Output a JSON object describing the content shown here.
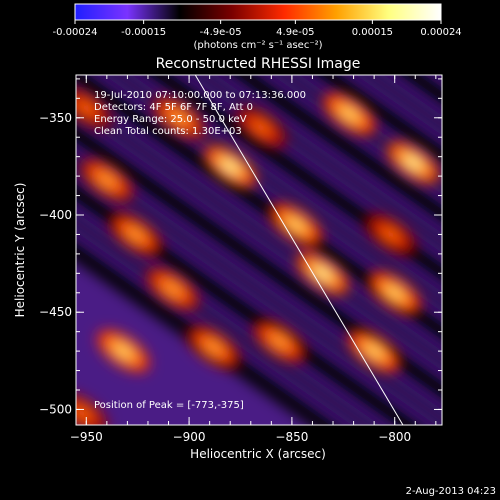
{
  "colorbar": {
    "ticks": [
      {
        "label": "-0.00024",
        "value": -0.00024
      },
      {
        "label": "-0.00015",
        "value": -0.00015
      },
      {
        "label": "-4.9e-05",
        "value": -4.9e-05
      },
      {
        "label": "4.9e-05",
        "value": 4.9e-05
      },
      {
        "label": "0.00015",
        "value": 0.00015
      },
      {
        "label": "0.00024",
        "value": 0.00024
      }
    ],
    "min": -0.00024,
    "max": 0.00024,
    "units_label": "(photons cm⁻² s⁻¹ asec⁻²)",
    "colors": [
      "#1f1fff",
      "#7a33ff",
      "#000000",
      "#7a0000",
      "#ff2a00",
      "#ffa000",
      "#ffff80",
      "#ffffff"
    ]
  },
  "chart_data": {
    "type": "heatmap",
    "title": "Reconstructed RHESSI Image",
    "xlabel": "Heliocentric X (arcsec)",
    "ylabel": "Heliocentric Y (arcsec)",
    "xlim": [
      -955,
      -777
    ],
    "ylim": [
      -508,
      -328
    ],
    "x_ticks": [
      {
        "label": "−950",
        "value": -950
      },
      {
        "label": "−900",
        "value": -900
      },
      {
        "label": "−850",
        "value": -850
      },
      {
        "label": "−800",
        "value": -800
      }
    ],
    "y_ticks": [
      {
        "label": "−350",
        "value": -350
      },
      {
        "label": "−400",
        "value": -400
      },
      {
        "label": "−450",
        "value": -450
      },
      {
        "label": "−500",
        "value": -500
      }
    ],
    "limb_line": [
      [
        -897,
        -328
      ],
      [
        -796,
        -508
      ]
    ],
    "peak": [
      -773,
      -375
    ],
    "annotations": {
      "time": "19-Jul-2010 07:10:00.000 to 07:13:36.000",
      "detectors": "Detectors: 4F 5F 6F 7F 8F, Att 0",
      "energy": "Energy Range: 25.0 - 50.0 keV",
      "clean": "Clean    Total counts: 1.30E+03",
      "peak_position": "Position of Peak = [-773,-375]"
    },
    "sources": [
      {
        "x": -880,
        "y": -375,
        "v": 1.0
      },
      {
        "x": -835,
        "y": -430,
        "v": 0.95
      },
      {
        "x": -791,
        "y": -373,
        "v": 0.95
      },
      {
        "x": -848,
        "y": -405,
        "v": 0.8
      },
      {
        "x": -822,
        "y": -348,
        "v": 0.75
      },
      {
        "x": -940,
        "y": -382,
        "v": 0.55
      },
      {
        "x": -905,
        "y": -350,
        "v": 0.6
      },
      {
        "x": -926,
        "y": -410,
        "v": 0.6
      },
      {
        "x": -908,
        "y": -438,
        "v": 0.55
      },
      {
        "x": -932,
        "y": -470,
        "v": 0.7
      },
      {
        "x": -888,
        "y": -468,
        "v": 0.6
      },
      {
        "x": -856,
        "y": -465,
        "v": 0.6
      },
      {
        "x": -810,
        "y": -470,
        "v": 0.8
      },
      {
        "x": -800,
        "y": -440,
        "v": 0.7
      },
      {
        "x": -802,
        "y": -410,
        "v": 0.45
      },
      {
        "x": -950,
        "y": -345,
        "v": 0.4
      },
      {
        "x": -952,
        "y": -502,
        "v": 0.4
      },
      {
        "x": -865,
        "y": -355,
        "v": 0.45
      }
    ]
  },
  "footer": {
    "date": "2-Aug-2013 04:23"
  }
}
